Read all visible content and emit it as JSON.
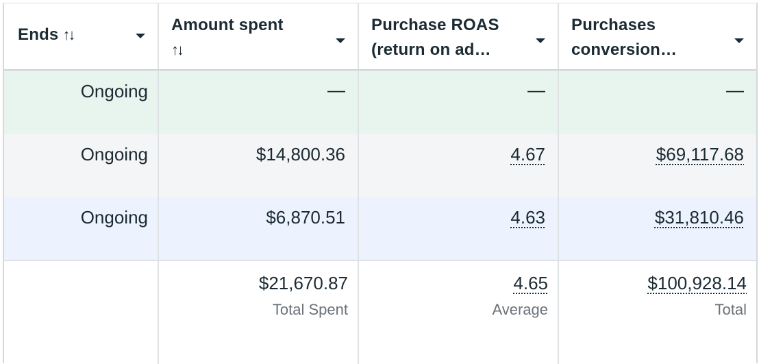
{
  "columns": [
    {
      "title_line1": "Ends",
      "title_line2": "",
      "sort_glyph": "↑↓"
    },
    {
      "title_line1": "Amount spent",
      "title_line2": "",
      "sort_glyph": "↑↓"
    },
    {
      "title_line1": "Purchase ROAS",
      "title_line2": "(return on ad…",
      "sort_glyph": ""
    },
    {
      "title_line1": "Purchases",
      "title_line2": "conversion…",
      "sort_glyph": ""
    }
  ],
  "rows": [
    {
      "ends": "Ongoing",
      "amount_spent": "—",
      "roas": "—",
      "conversion_value": "—",
      "highlight": "#e8f4ee"
    },
    {
      "ends": "Ongoing",
      "amount_spent": "$14,800.36",
      "roas": "4.67",
      "conversion_value": "$69,117.68",
      "highlight": "#f4f5f6"
    },
    {
      "ends": "Ongoing",
      "amount_spent": "$6,870.51",
      "roas": "4.63",
      "conversion_value": "$31,810.46",
      "highlight": "#ecf3fe"
    }
  ],
  "footer": {
    "amount_spent": {
      "value": "$21,670.87",
      "label": "Total Spent"
    },
    "roas": {
      "value": "4.65",
      "label": "Average"
    },
    "conversion_value": {
      "value": "$100,928.14",
      "label": "Total"
    }
  },
  "icons": {
    "sort": "sort-arrows-icon",
    "column_menu": "caret-down-icon"
  }
}
